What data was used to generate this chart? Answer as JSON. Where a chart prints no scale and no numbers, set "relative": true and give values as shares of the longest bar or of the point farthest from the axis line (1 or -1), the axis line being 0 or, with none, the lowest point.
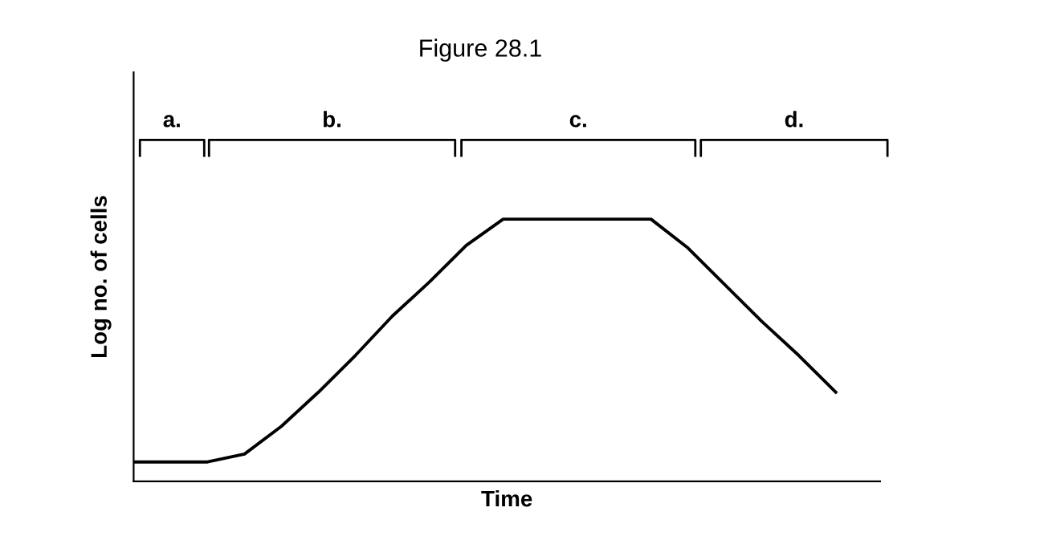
{
  "chart_data": {
    "type": "line",
    "title": "Figure 28.1",
    "xlabel": "Time",
    "ylabel": "Log no. of cells",
    "relative": true,
    "categories": [
      null,
      null,
      null,
      null,
      null,
      null,
      null,
      null,
      null,
      null,
      null,
      null,
      null,
      null,
      null,
      null,
      null,
      null,
      null,
      null,
      null
    ],
    "series": [
      {
        "color": "#000000",
        "values": [
          0.074,
          0.074,
          0.074,
          0.104,
          0.21,
          0.34,
          0.48,
          0.63,
          0.76,
          0.9,
          1,
          1,
          1,
          1,
          1,
          0.89,
          0.75,
          0.61,
          0.48,
          0.34,
          null
        ]
      }
    ],
    "annotations": [
      "a.",
      "b.",
      "c.",
      "d."
    ],
    "legend": false,
    "marker": "none",
    "line_style": "solid"
  }
}
